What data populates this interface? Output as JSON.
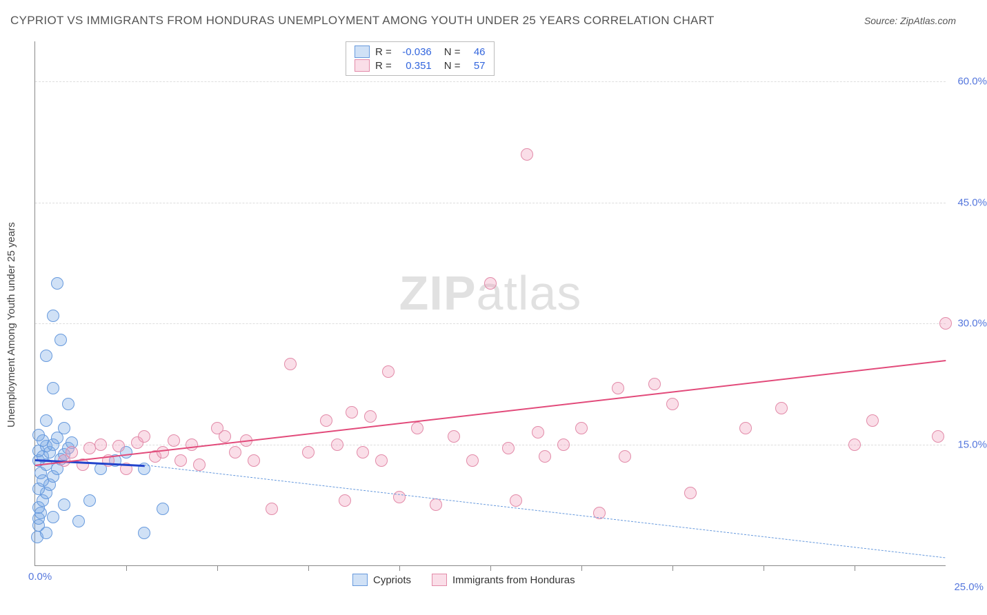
{
  "title": "CYPRIOT VS IMMIGRANTS FROM HONDURAS UNEMPLOYMENT AMONG YOUTH UNDER 25 YEARS CORRELATION CHART",
  "source_label": "Source: ZipAtlas.com",
  "y_axis_label": "Unemployment Among Youth under 25 years",
  "watermark_bold": "ZIP",
  "watermark_light": "atlas",
  "chart": {
    "type": "scatter",
    "xlim": [
      0,
      25
    ],
    "ylim": [
      0,
      65
    ],
    "x_origin_label": "0.0%",
    "x_end_label": "25.0%",
    "x_ticks": [
      2.5,
      5,
      7.5,
      10,
      12.5,
      15,
      17.5,
      20,
      22.5
    ],
    "y_gridlines": [
      15,
      30,
      45,
      60
    ],
    "y_tick_labels": [
      "15.0%",
      "30.0%",
      "45.0%",
      "60.0%"
    ],
    "background_color": "#ffffff",
    "grid_color": "#dddddd",
    "axis_color": "#888888",
    "label_color": "#444444",
    "tick_label_color": "#5577dd",
    "marker_radius": 8
  },
  "series": [
    {
      "name": "Cypriots",
      "fill_color": "rgba(120,170,230,0.35)",
      "stroke_color": "#6699dd",
      "stats": {
        "R": "-0.036",
        "N": "46"
      },
      "trend": {
        "x1": 0,
        "y1": 13.2,
        "x2": 3.0,
        "y2": 12.5,
        "solid_color": "#2244cc",
        "solid_width": 3,
        "dash_color": "#6699dd",
        "dash_width": 1.5,
        "dash_x2": 25,
        "dash_y2": 1
      },
      "points": [
        [
          0.05,
          3.5
        ],
        [
          0.1,
          5
        ],
        [
          0.1,
          5.8
        ],
        [
          0.15,
          6.5
        ],
        [
          0.1,
          7.2
        ],
        [
          0.2,
          8
        ],
        [
          0.3,
          9
        ],
        [
          0.1,
          9.5
        ],
        [
          0.4,
          10
        ],
        [
          0.2,
          10.5
        ],
        [
          0.5,
          11
        ],
        [
          0.15,
          11.5
        ],
        [
          0.6,
          12
        ],
        [
          0.3,
          12.5
        ],
        [
          0.1,
          13
        ],
        [
          0.7,
          13.2
        ],
        [
          0.2,
          13.5
        ],
        [
          0.8,
          13.8
        ],
        [
          0.4,
          14
        ],
        [
          0.1,
          14.2
        ],
        [
          0.9,
          14.5
        ],
        [
          0.3,
          14.8
        ],
        [
          0.5,
          15
        ],
        [
          1.0,
          15.2
        ],
        [
          0.2,
          15.5
        ],
        [
          0.6,
          15.8
        ],
        [
          0.1,
          16.2
        ],
        [
          0.8,
          17
        ],
        [
          0.3,
          18
        ],
        [
          0.9,
          20
        ],
        [
          0.5,
          22
        ],
        [
          0.3,
          26
        ],
        [
          0.7,
          28
        ],
        [
          0.5,
          31
        ],
        [
          0.6,
          35
        ],
        [
          0.3,
          4
        ],
        [
          0.5,
          6
        ],
        [
          0.8,
          7.5
        ],
        [
          1.2,
          5.5
        ],
        [
          1.5,
          8
        ],
        [
          1.8,
          12
        ],
        [
          2.2,
          13
        ],
        [
          2.5,
          14
        ],
        [
          3.0,
          12
        ],
        [
          3.5,
          7
        ],
        [
          3.0,
          4
        ]
      ]
    },
    {
      "name": "Immigrants from Honduras",
      "fill_color": "rgba(240,160,190,0.35)",
      "stroke_color": "#e28aa8",
      "stats": {
        "R": "0.351",
        "N": "57"
      },
      "trend": {
        "x1": 0,
        "y1": 12.5,
        "x2": 25,
        "y2": 25.5,
        "solid_color": "#e24a7a",
        "solid_width": 2.5
      },
      "points": [
        [
          0.8,
          13
        ],
        [
          1.0,
          14
        ],
        [
          1.3,
          12.5
        ],
        [
          1.5,
          14.5
        ],
        [
          1.8,
          15
        ],
        [
          2.0,
          13
        ],
        [
          2.3,
          14.8
        ],
        [
          2.5,
          12
        ],
        [
          2.8,
          15.2
        ],
        [
          3.0,
          16
        ],
        [
          3.3,
          13.5
        ],
        [
          3.5,
          14
        ],
        [
          3.8,
          15.5
        ],
        [
          4.0,
          13
        ],
        [
          4.3,
          15
        ],
        [
          4.5,
          12.5
        ],
        [
          5.0,
          17
        ],
        [
          5.2,
          16
        ],
        [
          5.5,
          14
        ],
        [
          5.8,
          15.5
        ],
        [
          6.0,
          13
        ],
        [
          6.5,
          7
        ],
        [
          7.0,
          25
        ],
        [
          7.5,
          14
        ],
        [
          8.0,
          18
        ],
        [
          8.3,
          15
        ],
        [
          8.5,
          8
        ],
        [
          8.7,
          19
        ],
        [
          9.0,
          14
        ],
        [
          9.2,
          18.5
        ],
        [
          9.5,
          13
        ],
        [
          9.7,
          24
        ],
        [
          10.0,
          8.5
        ],
        [
          10.5,
          17
        ],
        [
          11.0,
          7.5
        ],
        [
          11.5,
          16
        ],
        [
          12.0,
          13
        ],
        [
          12.5,
          35
        ],
        [
          13.0,
          14.5
        ],
        [
          13.2,
          8
        ],
        [
          13.5,
          51
        ],
        [
          13.8,
          16.5
        ],
        [
          14.0,
          13.5
        ],
        [
          14.5,
          15
        ],
        [
          15.0,
          17
        ],
        [
          15.5,
          6.5
        ],
        [
          16.0,
          22
        ],
        [
          16.2,
          13.5
        ],
        [
          17.0,
          22.5
        ],
        [
          17.5,
          20
        ],
        [
          18.0,
          9
        ],
        [
          19.5,
          17
        ],
        [
          20.5,
          19.5
        ],
        [
          22.5,
          15
        ],
        [
          23.0,
          18
        ],
        [
          24.8,
          16
        ],
        [
          25.0,
          30
        ]
      ]
    }
  ],
  "stats_box": {
    "r_label": "R =",
    "n_label": "N ="
  },
  "bottom_legend": {
    "items": [
      "Cypriots",
      "Immigrants from Honduras"
    ]
  }
}
